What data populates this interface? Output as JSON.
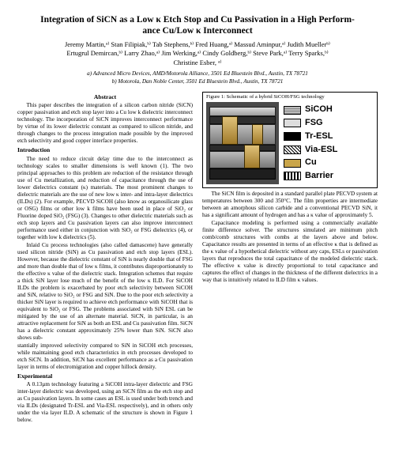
{
  "title_line1": "Integration of SiCN as a Low κ Etch Stop and Cu Passivation in a High Perform-",
  "title_line2": "ance Cu/Low κ Interconnect",
  "authors_line1": "Jeremy Martin,ᵃ⁾ Stan Filipiak,ᵇ⁾ Tab Stephens,ᵇ⁾ Fred Huang,ᵃ⁾ Massud Aminpur,ᵃ⁾ Judith Muellerᵇ⁾",
  "authors_line2": "Ertugrul Demircan,ᵇ⁾ Larry Zhao,ᵃ⁾ Jim Werking,ᵃ⁾ Cindy Goldberg,ᵇ⁾ Steve Park,ᵃ⁾ Terry Sparks,ᵇ⁾",
  "authors_line3": "Christine Esber, ᵃ⁾",
  "affil_a": "a) Advanced Micro Devices, AMD/Motorola Alliance, 3501 Ed Bluestein Blvd., Austin, TX 78721",
  "affil_b": "b) Motorola, Dan Noble Center, 3501 Ed Bluestein Blvd., Austin, TX 78721",
  "abstract_head": "Abstract",
  "abstract_body": "This paper describes the integration of a silicon carbon nitride (SiCN) copper passivation and etch stop layer into a Cu low k dielectric interconnect technology. The incorporation of SiCN improves interconnect performance by virtue of its lower dielectric constant as compared to silicon nitride, and through changes to the process integration made possible by the improved etch selectivity and good copper interface properties.",
  "intro_head": "Introduction",
  "intro_p1": "The need to reduce circuit delay time due to the interconnect as technology scales to smaller dimensions is well known (1). The two principal approaches to this problem are reduction of the resistance through use of Cu metallization, and reduction of capacitance through the use of lower dielectrics constant (κ) materials. The most prominent changes to dielectric materials are the use of new low κ inter- and intra-layer dielectrics (ILDs) (2). For example, PECVD SiCOH (also know as organosilicate glass or OSG) films or other low k films have been used in place of SiO₂ or Fluorine doped SiO₂ (FSG) (3). Changes to other dielectric materials such as etch stop layers and Cu passivation layers can also improve interconnect performance used either in conjunction with SiO₂ or FSG dielectrics (4), or together with low k dielectrics (5).",
  "intro_p2": "Inlaid Cu process technologies (also called damascene) have generally used silicon nitride (SiN) as Cu passivation and etch stop layers (ESL). However, because the dielectric constant of SiN is nearly double that of FSG and more than double that of low κ films, it contributes disproportionately to the effective κ value of the dielectric stack. Integration schemes that require a thick SiN layer lose much of the benefit of the low κ ILD. For SiCOH ILDs the problem is exacerbated by poor etch selectivity between SiCOH and SiN, relative to SiO₂ or FSG and SiN. Due to the poor etch selectivity a thicker SiN layer is required to achieve etch performance with SiCOH that is equivalent to SiO₂ or FSG. The problems associated with SiN ESL can be mitigated by the use of an alternate material. SiCN, in particular, is an attractive replacement for SiN as both an ESL and Cu passivation film. SiCN has a dielectric constant approximately 25% lower than SiN. SiCN also shows sub-",
  "col2_top": "stantially improved selectivity compared to SiN in SiCOH etch processes, while maintaining good etch characteristics in etch processes developed to etch SiCN. In addition, SiCN has excellent performance as a Cu passivation layer in terms of electromigration and copper hillock density.",
  "exp_head": "Experimental",
  "exp_p1": "A 0.13µm technology featuring a SiCOH intra-layer dielectric and FSG inter-layer dielectric was developed, using an SiCN film as the etch stop and as Cu passivation layers. In some cases an ESL is used under both trench and via ILDs (designated Tr-ESL and Via-ESL respectively), and in others only under the via layer ILD. A schematic of the structure is shown in Figure 1 below.",
  "fig_caption": "Figure 1: Schematic of a hybrid SiCOH/FSG technology",
  "legend": {
    "sicoh": "SiCOH",
    "fsg": "FSG",
    "tresl": "Tr-ESL",
    "viaesl": "Via-ESL",
    "cu": "Cu",
    "barrier": "Barrier"
  },
  "legend_colors": {
    "sicoh_bg": "#b0b0b0",
    "fsg_bg": "#dddddd",
    "tresl_bg": "#000000",
    "cu_bg": "#c9a54a"
  },
  "exp_p2": "The SiCN film is deposited in a standard parallel plate PECVD system at temperatures between 300 and 350°C. The film properties are intermediate between an amorphous silicon carbide and a conventional PECVD SiN, it has a significant amount of hydrogen and has a κ value of approximately 5.",
  "exp_p3": "Capacitance modeling is performed using a commercially available finite difference solver. The structures simulated are minimum pitch comb/comb structures with combs at the layers above and below. Capacitance results are presented in terms of an effective κ that is defined as the κ value of a hypothetical dielectric without any caps, ESLs or passivation layers that reproduces the total capacitance of the modeled dielectric stack. The effective κ value is directly proportional to total capacitance and captures the effect of changes in the thickness of the different dielectrics in a way that is intuitively related to ILD film κ values."
}
